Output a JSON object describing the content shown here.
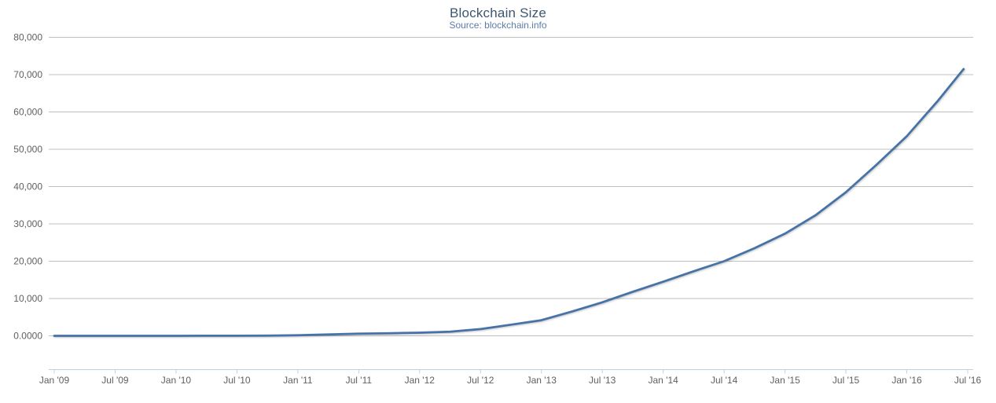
{
  "header": {
    "title": "Blockchain Size",
    "subtitle": "Source: blockchain.info"
  },
  "chart_data": {
    "type": "line",
    "title": "Blockchain Size",
    "subtitle": "Source: blockchain.info",
    "xlabel": "",
    "ylabel": "",
    "grid": true,
    "legend": "none",
    "ylim": [
      0,
      80000
    ],
    "x_range_months": [
      0,
      90
    ],
    "x_axis": {
      "tick_months": [
        0,
        6,
        12,
        18,
        24,
        30,
        36,
        42,
        48,
        54,
        60,
        66,
        72,
        78,
        84,
        90
      ],
      "tick_labels": [
        "Jan '09",
        "Jul '09",
        "Jan '10",
        "Jul '10",
        "Jan '11",
        "Jul '11",
        "Jan '12",
        "Jul '12",
        "Jan '13",
        "Jul '13",
        "Jan '14",
        "Jul '14",
        "Jan '15",
        "Jul '15",
        "Jan '16",
        "Jul '16"
      ]
    },
    "y_axis": {
      "ticks": [
        {
          "value": 0,
          "label": "0.0000"
        },
        {
          "value": 10000,
          "label": "10,000"
        },
        {
          "value": 20000,
          "label": "20,000"
        },
        {
          "value": 30000,
          "label": "30,000"
        },
        {
          "value": 40000,
          "label": "40,000"
        },
        {
          "value": 50000,
          "label": "50,000"
        },
        {
          "value": 60000,
          "label": "60,000"
        },
        {
          "value": 70000,
          "label": "70,000"
        },
        {
          "value": 80000,
          "label": "80,000"
        }
      ]
    },
    "series": [
      {
        "name": "Blockchain Size",
        "color": "#4572A7",
        "x_months": [
          0,
          3,
          6,
          9,
          12,
          15,
          18,
          21,
          24,
          27,
          30,
          33,
          36,
          39,
          42,
          45,
          48,
          51,
          54,
          57,
          60,
          63,
          66,
          69,
          72,
          75,
          78,
          81,
          84,
          87,
          89.6
        ],
        "values": [
          0,
          0.5,
          1,
          2,
          5,
          12,
          28,
          60,
          140,
          350,
          560,
          700,
          850,
          1100,
          1800,
          3000,
          4200,
          6500,
          9000,
          11800,
          14500,
          17300,
          20000,
          23500,
          27400,
          32300,
          38500,
          45800,
          53500,
          62800,
          71500
        ]
      }
    ],
    "colors": {
      "line": "#4572A7",
      "grid": "#C0C0C0",
      "axis_line": "#C0D0E0",
      "tick_mark": "#C0D0E0",
      "axis_label": "#606060",
      "title": "#3E576F",
      "subtitle": "#5D7DA3",
      "background": "#FFFFFF"
    }
  }
}
